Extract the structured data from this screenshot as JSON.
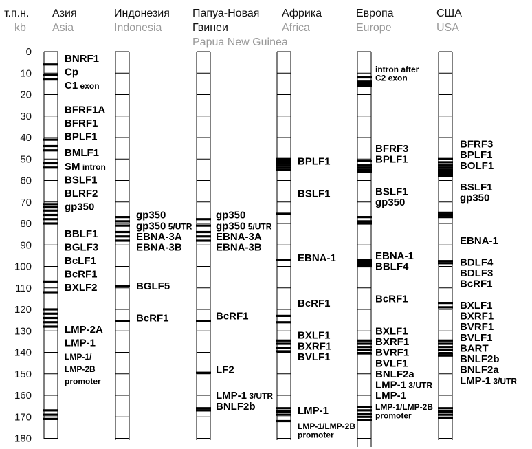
{
  "axis": {
    "label_ru": "т.п.н.",
    "label_en": "kb",
    "min": 0,
    "max": 180,
    "step": 10
  },
  "columns": [
    {
      "id": "asia",
      "name_ru": "Азия",
      "name_en": "Asia",
      "bars": [
        6,
        11,
        13,
        41,
        44,
        46,
        52,
        54,
        71,
        72.5,
        74,
        76,
        78,
        80,
        107,
        112,
        120,
        122,
        124,
        126,
        128,
        167,
        169,
        171
      ],
      "labels": [
        {
          "at": 8,
          "text": "BNRF1"
        },
        {
          "at": 18,
          "text": "Cp"
        },
        {
          "at": 28,
          "text": "C1",
          "small": " exon"
        },
        {
          "at": 46,
          "text": "BFRF1A"
        },
        {
          "at": 56,
          "text": "BFRF1"
        },
        {
          "at": 66,
          "text": "BPLF1"
        },
        {
          "at": 78,
          "text": "BMLF1"
        },
        {
          "at": 88,
          "text": "SM",
          "small": " intron"
        },
        {
          "at": 98,
          "text": "BSLF1"
        },
        {
          "at": 108,
          "text": "BLRF2"
        },
        {
          "at": 118,
          "text": "gp350"
        },
        {
          "at": 138,
          "text": "BBLF1"
        },
        {
          "at": 148,
          "text": "BGLF3"
        },
        {
          "at": 158,
          "text": "BcLF1"
        },
        {
          "at": 168,
          "text": "BcRF1"
        },
        {
          "at": 178,
          "text": "BXLF2"
        },
        {
          "at": 209,
          "text": "LMP-2A"
        },
        {
          "at": 219,
          "text": "LMP-1"
        },
        {
          "at": 229,
          "text": "LMP-1/",
          "sizeSmall": true
        },
        {
          "at": 238,
          "text": "LMP-2B",
          "sizeSmall": true
        },
        {
          "at": 247,
          "text": "promoter",
          "sizeSmall": true
        }
      ]
    },
    {
      "id": "indonesia",
      "name_ru": "Индонезия",
      "name_en": "Indonesia",
      "bars": [
        77,
        79,
        81,
        84,
        86,
        88,
        109,
        125.5
      ],
      "labels": [
        {
          "at": 77,
          "text": "gp350"
        },
        {
          "at": 82,
          "text": "gp350",
          "small": " 5/UTR"
        },
        {
          "at": 87,
          "text": "EBNA-3A"
        },
        {
          "at": 92,
          "text": "EBNA-3B"
        },
        {
          "at": 110,
          "text": "BGLF5"
        },
        {
          "at": 125,
          "text": "BcRF1"
        }
      ]
    },
    {
      "id": "png",
      "name_ru": "Папуа-Новая",
      "name_ru2": "Гвинеи",
      "name_en": "Papua New Guinea",
      "bars": [
        78,
        81,
        84,
        86,
        88,
        125.5,
        149.5,
        166,
        167
      ],
      "labels": [
        {
          "at": 77,
          "text": "gp350"
        },
        {
          "at": 82,
          "text": "gp350",
          "small": " 5/UTR"
        },
        {
          "at": 87,
          "text": "EBNA-3A"
        },
        {
          "at": 92,
          "text": "EBNA-3B"
        },
        {
          "at": 124,
          "text": "BcRF1"
        },
        {
          "at": 149,
          "text": "LF2"
        },
        {
          "at": 161,
          "text": "LMP-1",
          "small": " 3/UTR"
        },
        {
          "at": 166,
          "text": "BNLF2b"
        }
      ]
    },
    {
      "id": "africa",
      "name_ru": "Африка",
      "name_en": "Africa",
      "bars": [
        50,
        51,
        52,
        53,
        54,
        55,
        75.5,
        97,
        123,
        126,
        134.5,
        136,
        138,
        139.5,
        166,
        167.5,
        169,
        172
      ],
      "labels": [
        {
          "at": 52,
          "text": "BPLF1"
        },
        {
          "at": 67,
          "text": "BSLF1"
        },
        {
          "at": 97,
          "text": "EBNA-1"
        },
        {
          "at": 118,
          "text": "BcRF1"
        },
        {
          "at": 133,
          "text": "BXLF1"
        },
        {
          "at": 138,
          "text": "BXRF1"
        },
        {
          "at": 143,
          "text": "BVLF1"
        },
        {
          "at": 168,
          "text": "LMP-1"
        },
        {
          "at": 175,
          "text": "LMP-1/LMP-2B",
          "sizeSmall": true
        },
        {
          "at": 179,
          "text": "promoter",
          "sizeSmall": true
        }
      ]
    },
    {
      "id": "europe",
      "name_ru": "Европа",
      "name_en": "Europe",
      "bars": [
        12,
        14,
        15,
        16,
        51,
        53,
        54,
        55,
        56,
        77,
        79,
        80,
        97,
        98,
        99,
        100,
        134.5,
        136,
        137.5,
        139,
        140.5,
        165.5,
        167,
        168.5,
        170,
        171.5
      ],
      "labels": [
        {
          "at": 9,
          "text": "intron after",
          "sizeSmall": true
        },
        {
          "at": 13,
          "text": "C2 exon",
          "sizeSmall": true
        },
        {
          "at": 46,
          "text": "BFRF3"
        },
        {
          "at": 51,
          "text": "BPLF1"
        },
        {
          "at": 66,
          "text": "BSLF1"
        },
        {
          "at": 71,
          "text": "gp350"
        },
        {
          "at": 96,
          "text": "EBNA-1"
        },
        {
          "at": 101,
          "text": "BBLF4"
        },
        {
          "at": 116,
          "text": "BcRF1"
        },
        {
          "at": 131,
          "text": "BXLF1"
        },
        {
          "at": 136,
          "text": "BXRF1"
        },
        {
          "at": 141,
          "text": "BVRF1"
        },
        {
          "at": 146,
          "text": "BVLF1"
        },
        {
          "at": 151,
          "text": "BNLF2a"
        },
        {
          "at": 156,
          "text": "LMP-1",
          "small": " 3/UTR"
        },
        {
          "at": 161,
          "text": "LMP-1"
        },
        {
          "at": 166,
          "text": "LMP-1/LMP-2B",
          "sizeSmall": true
        },
        {
          "at": 170,
          "text": "promoter",
          "sizeSmall": true
        }
      ]
    },
    {
      "id": "usa",
      "name_ru": "США",
      "name_en": "USA",
      "bars": [
        50,
        51.5,
        53,
        54,
        55,
        56,
        57,
        58,
        75,
        76,
        77,
        97.5,
        98.5,
        117,
        119,
        134.5,
        136,
        137.5,
        139,
        140.5,
        141.5,
        166,
        167.5,
        169,
        170.5
      ],
      "labels": [
        {
          "at": 44,
          "text": "BFRF3"
        },
        {
          "at": 49,
          "text": "BPLF1"
        },
        {
          "at": 54,
          "text": "BOLF1"
        },
        {
          "at": 64,
          "text": "BSLF1"
        },
        {
          "at": 69,
          "text": "gp350"
        },
        {
          "at": 89,
          "text": "EBNA-1"
        },
        {
          "at": 99,
          "text": "BDLF4"
        },
        {
          "at": 104,
          "text": "BDLF3"
        },
        {
          "at": 109,
          "text": "BcRF1"
        },
        {
          "at": 119,
          "text": "BXLF1"
        },
        {
          "at": 124,
          "text": "BXRF1"
        },
        {
          "at": 129,
          "text": "BVRF1"
        },
        {
          "at": 134,
          "text": "BVLF1"
        },
        {
          "at": 139,
          "text": "BART"
        },
        {
          "at": 144,
          "text": "BNLF2b"
        },
        {
          "at": 149,
          "text": "BNLF2a"
        },
        {
          "at": 154,
          "text": "LMP-1",
          "small": " 3/UTR"
        }
      ]
    }
  ]
}
